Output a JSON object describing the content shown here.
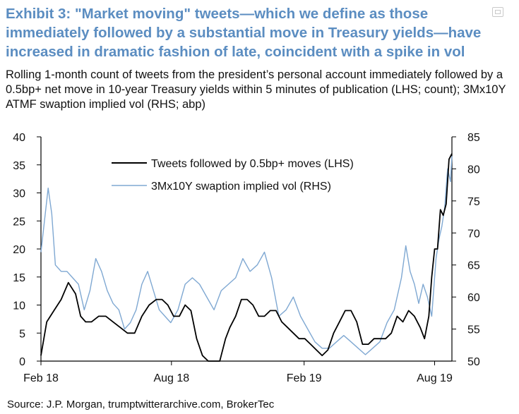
{
  "exhibit": {
    "title": "Exhibit 3: \"Market moving\" tweets—which we define as those immediately followed by a substantial move in Treasury yields—have increased in dramatic fashion of late, coincident with a spike in vol",
    "subtitle": "Rolling 1-month count of tweets from the president’s personal account immediately followed by a 0.5bp+ net move in 10-year Treasury yields within 5 minutes of publication (LHS; count); 3Mx10Y ATMF swaption implied vol (RHS; abp)",
    "source": "Source: J.P. Morgan, trumptwitterarchive.com, BrokerTec",
    "corner_icon": "expand-icon"
  },
  "colors": {
    "title": "#5b8dc1",
    "tweets_line": "#000000",
    "vol_line": "#7fa8d2"
  },
  "chart_data": {
    "type": "line",
    "title": "",
    "xlabel": "",
    "ylabel": "",
    "x_ticks": [
      {
        "label": "Feb 18",
        "pos": 0
      },
      {
        "label": "Aug 18",
        "pos": 181
      },
      {
        "label": "Feb 19",
        "pos": 365
      },
      {
        "label": "Aug 19",
        "pos": 546
      }
    ],
    "x_range": [
      0,
      570
    ],
    "y_left": {
      "range": [
        0,
        40
      ],
      "ticks": [
        0,
        5,
        10,
        15,
        20,
        25,
        30,
        35,
        40
      ]
    },
    "y_right": {
      "range": [
        50,
        85
      ],
      "ticks": [
        50,
        55,
        60,
        65,
        70,
        75,
        80,
        85
      ]
    },
    "series": [
      {
        "name": "Tweets followed by 0.5bp+ moves (LHS)",
        "axis": "left",
        "color": "#000000",
        "x": [
          0,
          8,
          18,
          28,
          38,
          48,
          55,
          62,
          70,
          80,
          90,
          100,
          110,
          120,
          130,
          140,
          150,
          160,
          168,
          176,
          184,
          192,
          200,
          208,
          216,
          224,
          232,
          240,
          248,
          256,
          262,
          270,
          278,
          286,
          294,
          302,
          310,
          318,
          326,
          334,
          342,
          350,
          358,
          366,
          374,
          382,
          390,
          398,
          406,
          414,
          422,
          430,
          438,
          446,
          454,
          462,
          470,
          478,
          486,
          494,
          502,
          510,
          518,
          526,
          532,
          538,
          542,
          546,
          550,
          554,
          558,
          562,
          566,
          570
        ],
        "values": [
          1,
          7,
          9,
          11,
          14,
          12,
          8,
          7,
          7,
          8,
          8,
          7,
          6,
          5,
          5,
          8,
          10,
          11,
          11,
          10,
          8,
          8,
          10,
          9,
          4,
          1,
          0,
          0,
          0,
          4,
          6,
          8,
          11,
          11,
          10,
          8,
          8,
          9,
          9,
          7,
          6,
          5,
          4,
          4,
          3,
          2,
          1,
          2,
          5,
          7,
          9,
          9,
          7,
          3,
          3,
          4,
          4,
          4,
          5,
          8,
          7,
          9,
          8,
          6,
          4,
          8,
          15,
          20,
          20,
          27,
          26,
          28,
          36,
          37
        ]
      },
      {
        "name": "3Mx10Y swaption implied vol (RHS)",
        "axis": "right",
        "color": "#7fa8d2",
        "x": [
          0,
          5,
          10,
          15,
          20,
          28,
          36,
          44,
          52,
          60,
          68,
          76,
          84,
          92,
          100,
          108,
          116,
          124,
          132,
          140,
          148,
          156,
          164,
          172,
          180,
          190,
          200,
          210,
          220,
          230,
          240,
          250,
          260,
          270,
          280,
          290,
          300,
          310,
          320,
          330,
          340,
          350,
          360,
          370,
          380,
          390,
          400,
          410,
          420,
          430,
          440,
          450,
          460,
          470,
          480,
          490,
          500,
          506,
          512,
          518,
          524,
          530,
          536,
          542,
          548,
          552,
          556,
          560,
          564,
          568,
          570
        ],
        "values": [
          67,
          72,
          77,
          73,
          65,
          64,
          64,
          63,
          62,
          58,
          61,
          66,
          64,
          61,
          59,
          58,
          55,
          56,
          58,
          62,
          64,
          61,
          58,
          57,
          56,
          58,
          62,
          63,
          62,
          60,
          58,
          61,
          62,
          63,
          66,
          64,
          65,
          67,
          63,
          57,
          58,
          60,
          57,
          55,
          53,
          52,
          52,
          53,
          54,
          53,
          52,
          51,
          52,
          53,
          56,
          58,
          63,
          68,
          64,
          62,
          59,
          62,
          60,
          57,
          66,
          69,
          71,
          74,
          80,
          78,
          82
        ]
      }
    ],
    "legend": {
      "position": "top-center",
      "entries": [
        "Tweets followed by 0.5bp+ moves (LHS)",
        "3Mx10Y swaption implied vol (RHS)"
      ]
    },
    "grid": false
  }
}
